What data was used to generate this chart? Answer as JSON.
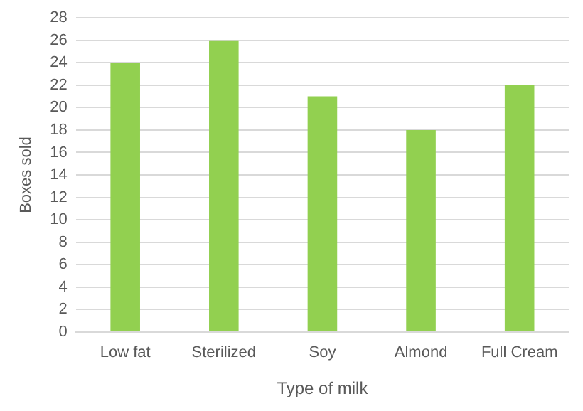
{
  "chart_data": {
    "type": "bar",
    "xlabel": "Type of milk",
    "ylabel": "Boxes sold",
    "categories": [
      "Low fat",
      "Sterilized",
      "Soy",
      "Almond",
      "Full Cream"
    ],
    "values": [
      24,
      26,
      21,
      18,
      22
    ],
    "color": "#92d050",
    "ylim": [
      0,
      28
    ],
    "yticks": [
      0,
      2,
      4,
      6,
      8,
      10,
      12,
      14,
      16,
      18,
      20,
      22,
      24,
      26,
      28
    ],
    "grid": "y",
    "legend": false
  }
}
